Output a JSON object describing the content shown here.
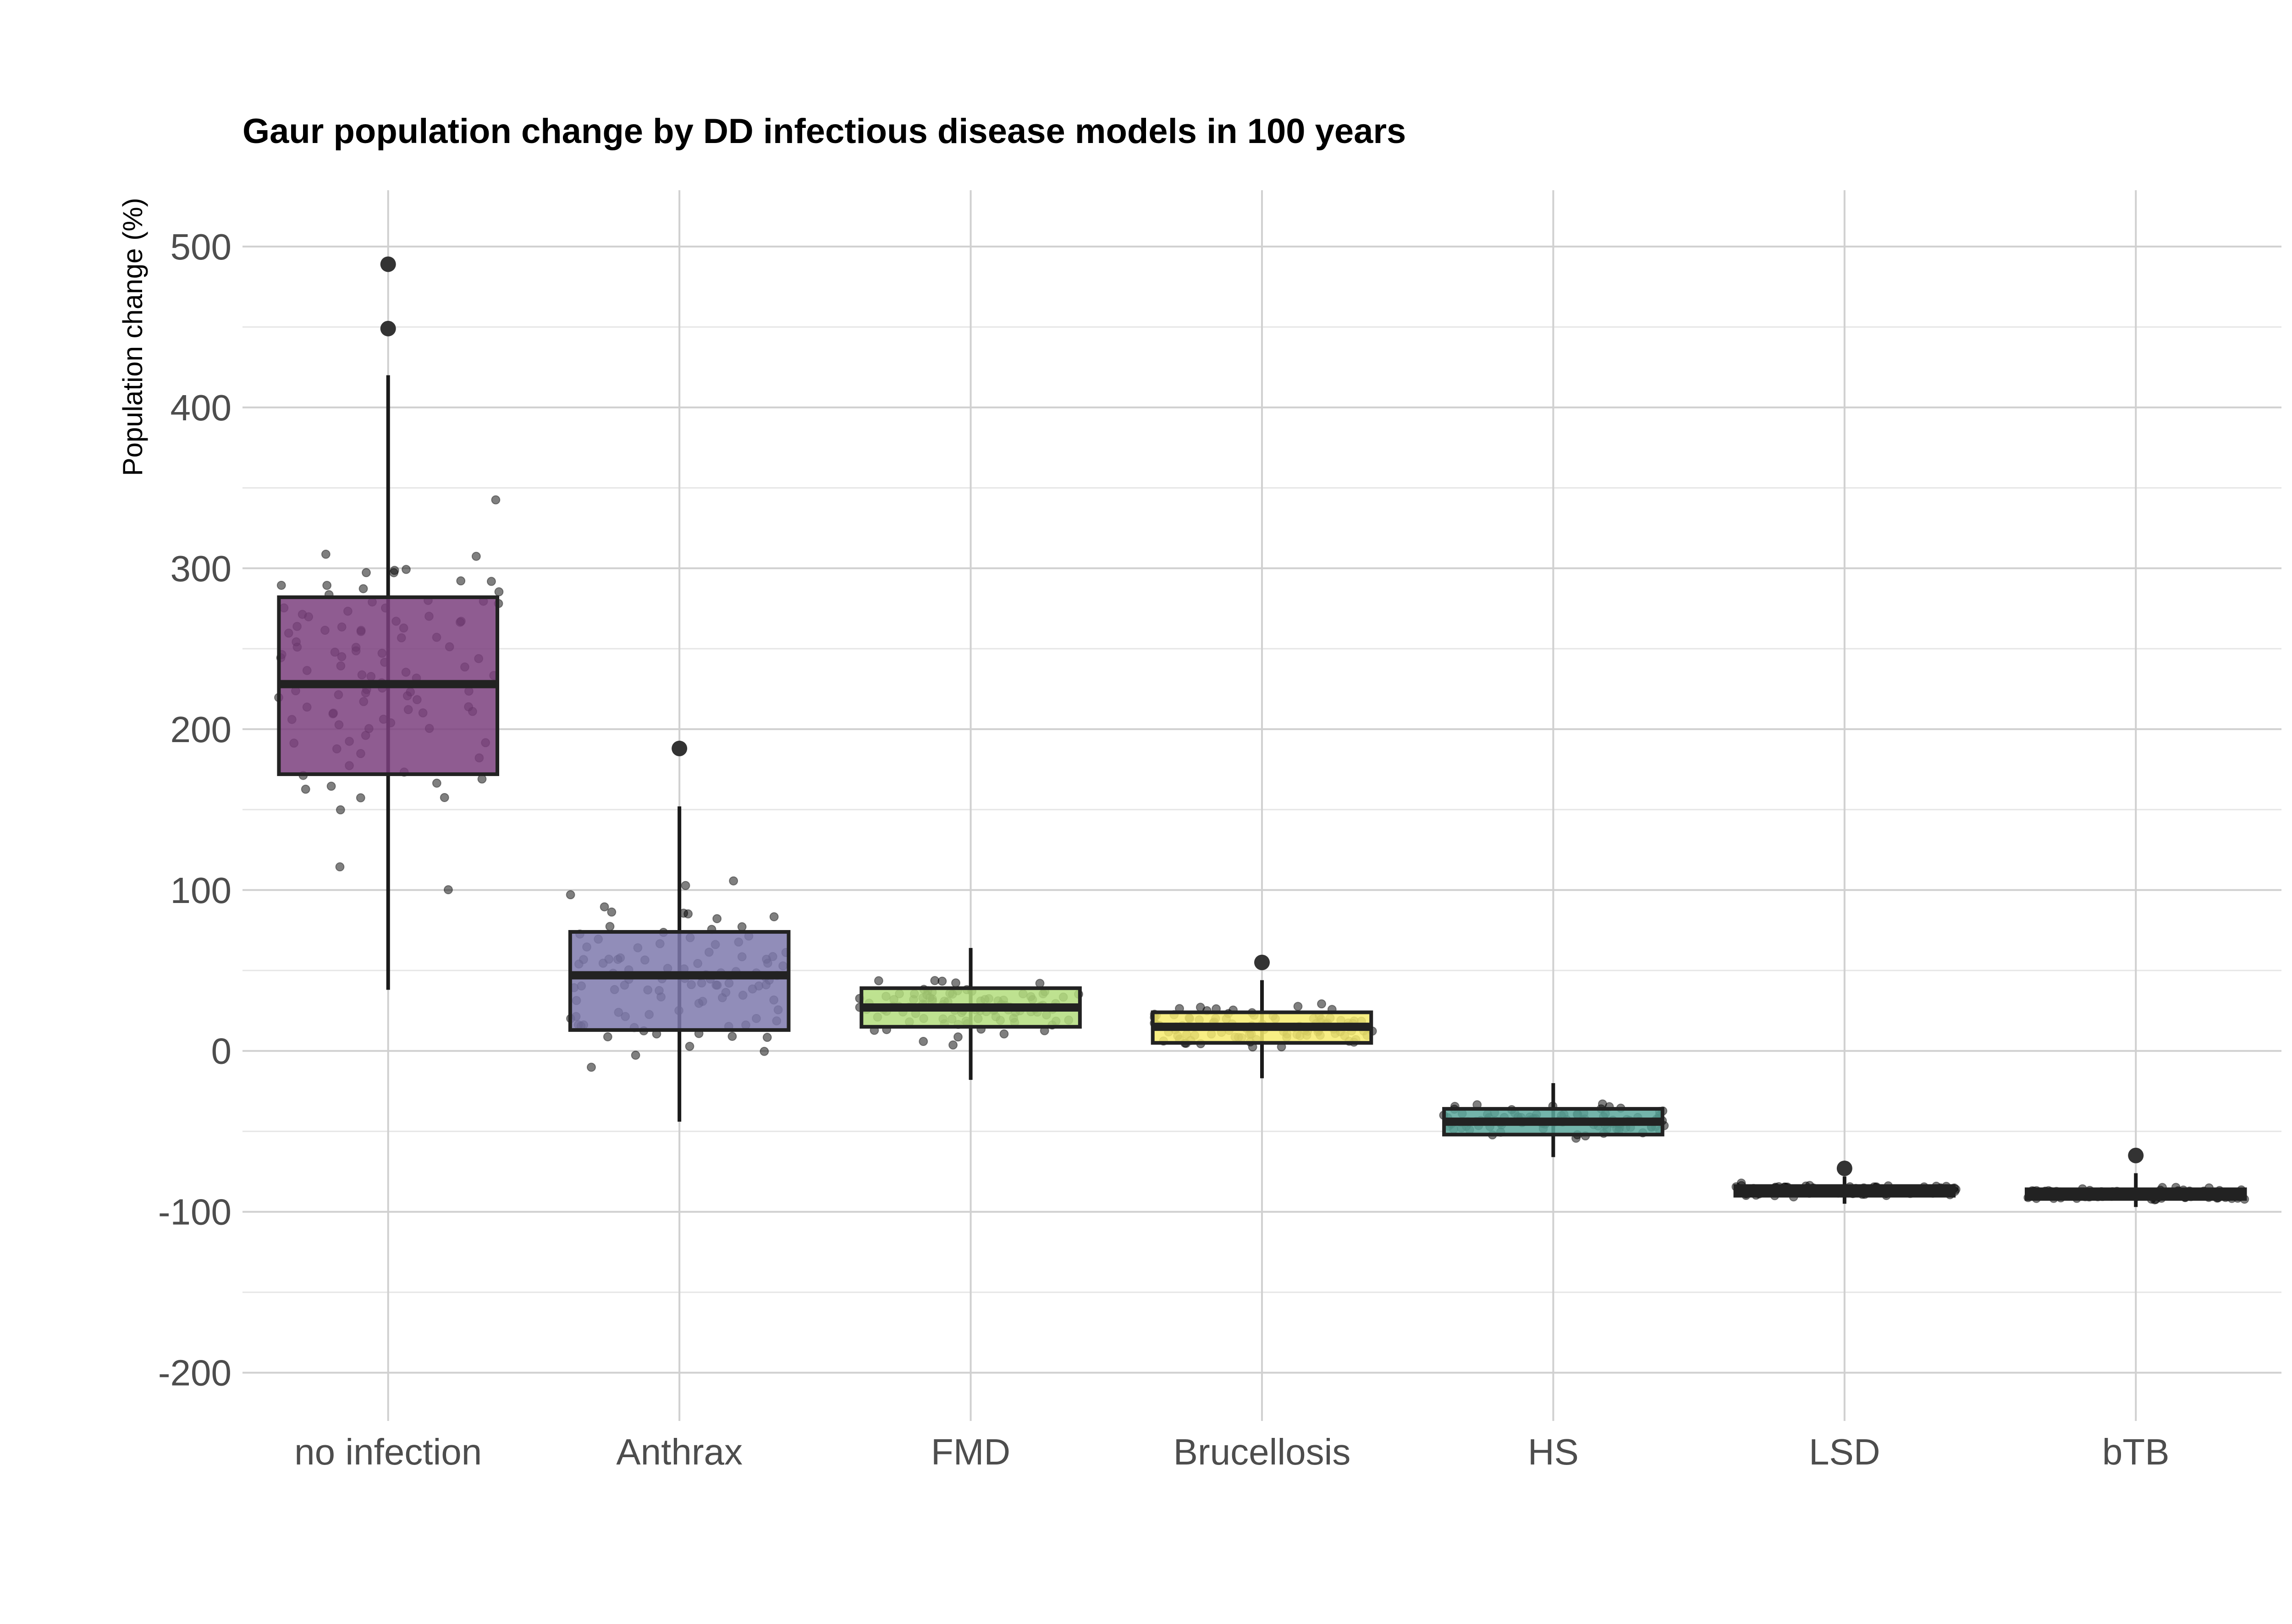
{
  "chart_data": {
    "type": "box",
    "title": "Gaur population change by DD infectious disease models in 100 years",
    "xlabel": "",
    "ylabel": "Population change (%)",
    "ylim": [
      -230,
      535
    ],
    "yticks": [
      -200,
      -100,
      0,
      100,
      200,
      300,
      400,
      500
    ],
    "grid": true,
    "legend": "none",
    "categories": [
      "no infection",
      "Anthrax",
      "FMD",
      "Brucellosis",
      "HS",
      "LSD",
      "bTB"
    ],
    "boxes": [
      {
        "name": "no infection",
        "color": "#7b3f7e",
        "q1": 172,
        "median": 228,
        "q3": 282,
        "whisker_low": 38,
        "whisker_high": 420,
        "outliers": [
          449,
          489
        ],
        "jitter_mean": 230,
        "jitter_spread": 110
      },
      {
        "name": "Anthrax",
        "color": "#7e79ad",
        "q1": 13,
        "median": 47,
        "q3": 74,
        "whisker_low": -44,
        "whisker_high": 152,
        "outliers": [
          188
        ],
        "jitter_mean": 45,
        "jitter_spread": 55
      },
      {
        "name": "FMD",
        "color": "#b3dd7d",
        "q1": 15,
        "median": 27,
        "q3": 39,
        "whisker_low": -18,
        "whisker_high": 64,
        "outliers": [],
        "jitter_mean": 27,
        "jitter_spread": 18
      },
      {
        "name": "Brucellosis",
        "color": "#f7ec6f",
        "q1": 5,
        "median": 15,
        "q3": 24,
        "whisker_low": -17,
        "whisker_high": 44,
        "outliers": [
          55
        ],
        "jitter_mean": 15,
        "jitter_spread": 15
      },
      {
        "name": "HS",
        "color": "#5aa79b",
        "q1": -52,
        "median": -44,
        "q3": -36,
        "whisker_low": -66,
        "whisker_high": -20,
        "outliers": [],
        "jitter_mean": -44,
        "jitter_spread": 10
      },
      {
        "name": "LSD",
        "color": "#2f5d6b",
        "q1": -90,
        "median": -87,
        "q3": -84,
        "whisker_low": -95,
        "whisker_high": -78,
        "outliers": [
          -73
        ],
        "jitter_mean": -87,
        "jitter_spread": 4
      },
      {
        "name": "bTB",
        "color": "#2a5a6b",
        "q1": -92,
        "median": -89,
        "q3": -86,
        "whisker_low": -97,
        "whisker_high": -76,
        "outliers": [
          -65
        ],
        "jitter_mean": -89,
        "jitter_spread": 4
      }
    ]
  }
}
